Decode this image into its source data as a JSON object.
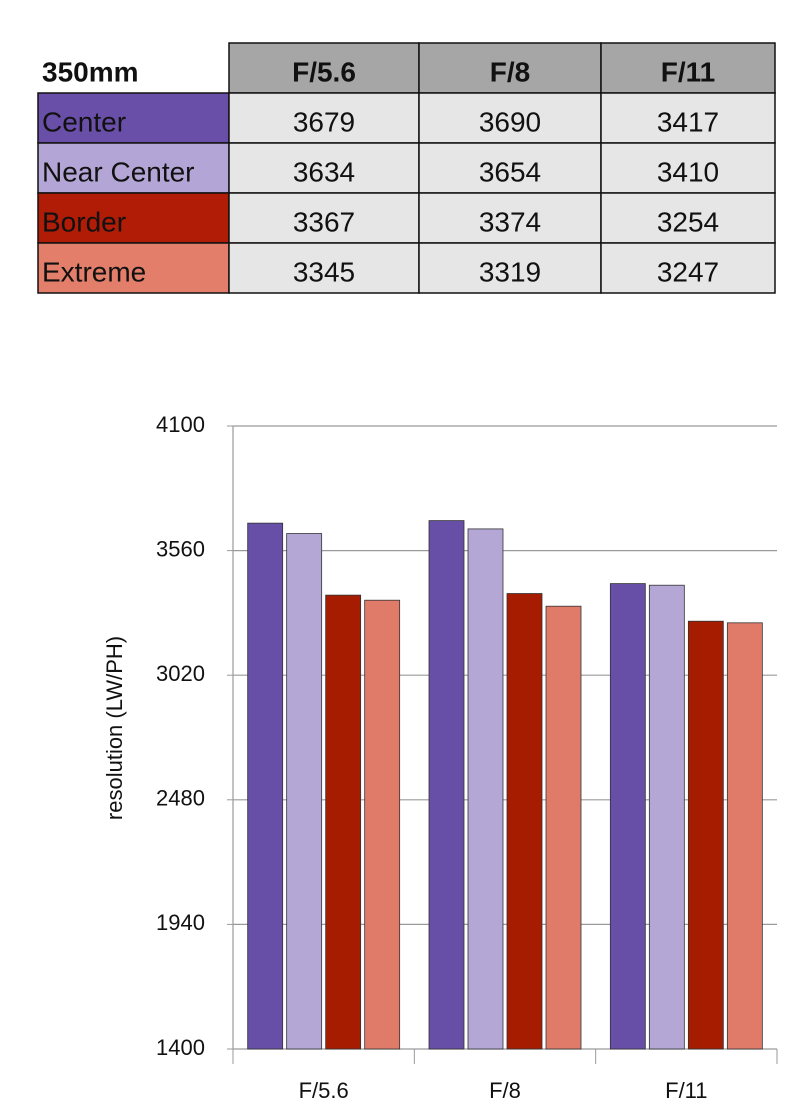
{
  "table": {
    "corner": "350mm",
    "columns": [
      "F/5.6",
      "F/8",
      "F/11"
    ],
    "rows": [
      {
        "label": "Center",
        "color": "#6a4fa8",
        "values": [
          "3679",
          "3690",
          "3417"
        ]
      },
      {
        "label": "Near Center",
        "color": "#b3a6d6",
        "values": [
          "3634",
          "3654",
          "3410"
        ]
      },
      {
        "label": "Border",
        "color": "#b01c06",
        "values": [
          "3367",
          "3374",
          "3254"
        ]
      },
      {
        "label": "Extreme",
        "color": "#e27e6a",
        "values": [
          "3345",
          "3319",
          "3247"
        ]
      }
    ]
  },
  "chart_data": {
    "type": "bar",
    "y_label": "resolution (LW/PH)",
    "categories": [
      "F/5.6",
      "F/8",
      "F/11"
    ],
    "series": [
      {
        "name": "Center",
        "color": "#674ea7",
        "values": [
          3679,
          3690,
          3417
        ]
      },
      {
        "name": "Near Center",
        "color": "#b4a7d6",
        "values": [
          3634,
          3654,
          3410
        ]
      },
      {
        "name": "Border",
        "color": "#a61c00",
        "values": [
          3367,
          3374,
          3254
        ]
      },
      {
        "name": "Extreme",
        "color": "#e07b69",
        "values": [
          3345,
          3319,
          3247
        ]
      }
    ],
    "ylim": [
      1400,
      4100
    ],
    "yticks": [
      1400,
      1940,
      2480,
      3020,
      3560,
      4100
    ],
    "grid": true
  }
}
